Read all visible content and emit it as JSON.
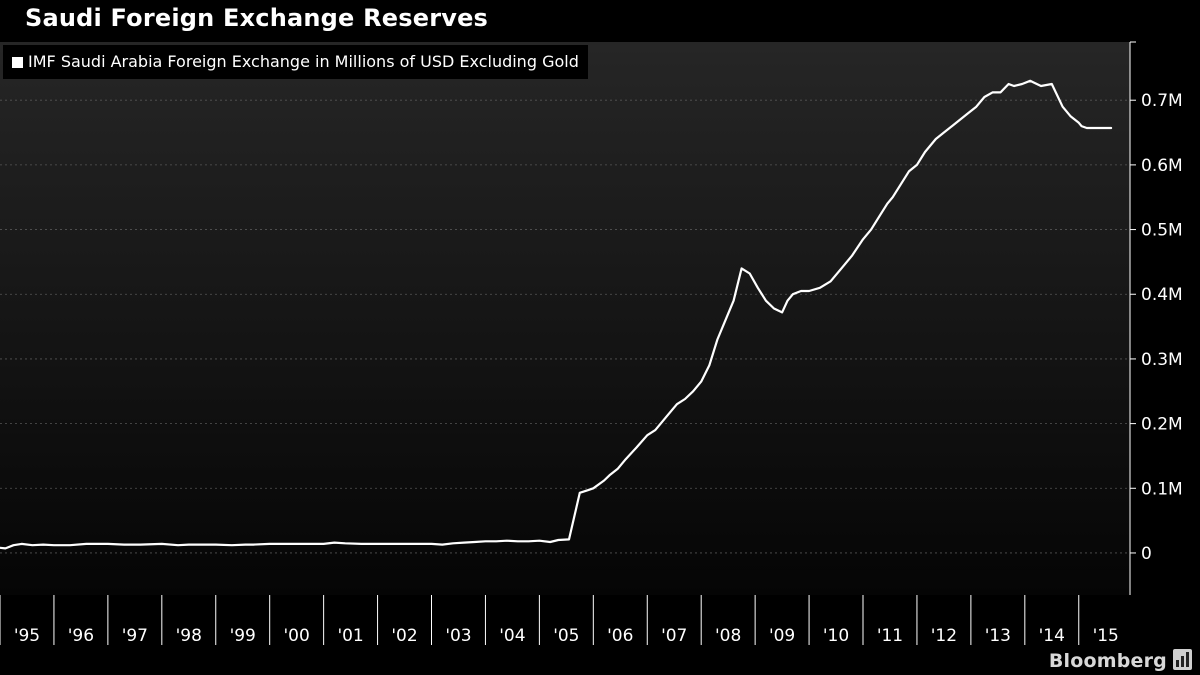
{
  "title": "Saudi Foreign Exchange Reserves",
  "brand": "Bloomberg",
  "brand_icon": "bar-chart-icon",
  "colors": {
    "background": "#000000",
    "line": "#ffffff",
    "grid": "#555555",
    "text": "#ffffff"
  },
  "chart_data": {
    "type": "line",
    "title": "Saudi Foreign Exchange Reserves",
    "xlabel": "",
    "ylabel": "",
    "legend": {
      "position": "top-left",
      "entries": [
        "IMF Saudi Arabia Foreign Exchange in Millions of USD Excluding Gold"
      ]
    },
    "grid": true,
    "y_axis_side": "right",
    "ylim": [
      -0.065,
      0.79
    ],
    "xlim": [
      1995.0,
      2015.95
    ],
    "y_ticks": [
      0,
      0.1,
      0.2,
      0.3,
      0.4,
      0.5,
      0.6,
      0.7
    ],
    "y_tick_labels": [
      "0",
      "0.1M",
      "0.2M",
      "0.3M",
      "0.4M",
      "0.5M",
      "0.6M",
      "0.7M"
    ],
    "x_ticks": [
      1995.5,
      1996.5,
      1997.5,
      1998.5,
      1999.5,
      2000.5,
      2001.5,
      2002.5,
      2003.5,
      2004.5,
      2005.5,
      2006.5,
      2007.5,
      2008.5,
      2009.5,
      2010.5,
      2011.5,
      2012.5,
      2013.5,
      2014.5,
      2015.5
    ],
    "x_tick_labels": [
      "'95",
      "'96",
      "'97",
      "'98",
      "'99",
      "'00",
      "'01",
      "'02",
      "'03",
      "'04",
      "'05",
      "'06",
      "'07",
      "'08",
      "'09",
      "'10",
      "'11",
      "'12",
      "'13",
      "'14",
      "'15"
    ],
    "series": [
      {
        "name": "IMF Saudi Arabia Foreign Exchange in Millions of USD Excluding Gold",
        "x": [
          1995.0,
          1995.1,
          1995.25,
          1995.4,
          1995.6,
          1995.8,
          1996.0,
          1996.3,
          1996.6,
          1997.0,
          1997.3,
          1997.6,
          1998.0,
          1998.3,
          1998.5,
          1998.7,
          1999.0,
          1999.3,
          1999.55,
          1999.7,
          2000.0,
          2000.5,
          2001.0,
          2001.2,
          2001.4,
          2001.7,
          2002.0,
          2002.5,
          2003.0,
          2003.2,
          2003.4,
          2003.6,
          2003.8,
          2004.0,
          2004.2,
          2004.4,
          2004.6,
          2004.8,
          2005.0,
          2005.2,
          2005.35,
          2005.55,
          2005.75,
          2005.9,
          2006.0,
          2006.2,
          2006.3,
          2006.45,
          2006.6,
          2006.8,
          2007.0,
          2007.15,
          2007.35,
          2007.55,
          2007.7,
          2007.85,
          2008.0,
          2008.15,
          2008.3,
          2008.45,
          2008.6,
          2008.75,
          2008.9,
          2009.05,
          2009.2,
          2009.35,
          2009.5,
          2009.6,
          2009.7,
          2009.85,
          2010.0,
          2010.2,
          2010.4,
          2010.6,
          2010.8,
          2011.0,
          2011.15,
          2011.3,
          2011.45,
          2011.55,
          2011.7,
          2011.85,
          2012.0,
          2012.15,
          2012.35,
          2012.5,
          2012.65,
          2012.8,
          2012.95,
          2013.1,
          2013.25,
          2013.4,
          2013.55,
          2013.7,
          2013.8,
          2013.95,
          2014.1,
          2014.15,
          2014.3,
          2014.5,
          2014.7,
          2014.85,
          2015.0,
          2015.05,
          2015.15,
          2015.3,
          2015.5,
          2015.6
        ],
        "values": [
          0.008,
          0.007,
          0.012,
          0.014,
          0.012,
          0.013,
          0.012,
          0.012,
          0.014,
          0.014,
          0.013,
          0.013,
          0.014,
          0.012,
          0.013,
          0.013,
          0.013,
          0.012,
          0.013,
          0.013,
          0.014,
          0.014,
          0.014,
          0.016,
          0.015,
          0.014,
          0.014,
          0.014,
          0.014,
          0.013,
          0.015,
          0.016,
          0.017,
          0.018,
          0.018,
          0.019,
          0.018,
          0.018,
          0.019,
          0.017,
          0.02,
          0.021,
          0.093,
          0.097,
          0.1,
          0.112,
          0.12,
          0.13,
          0.145,
          0.163,
          0.182,
          0.19,
          0.21,
          0.23,
          0.238,
          0.25,
          0.265,
          0.29,
          0.33,
          0.36,
          0.39,
          0.44,
          0.432,
          0.41,
          0.39,
          0.378,
          0.372,
          0.39,
          0.4,
          0.405,
          0.405,
          0.41,
          0.42,
          0.44,
          0.46,
          0.485,
          0.5,
          0.52,
          0.54,
          0.55,
          0.57,
          0.59,
          0.6,
          0.62,
          0.64,
          0.65,
          0.66,
          0.67,
          0.68,
          0.69,
          0.705,
          0.712,
          0.712,
          0.725,
          0.722,
          0.725,
          0.73,
          0.728,
          0.722,
          0.725,
          0.69,
          0.675,
          0.665,
          0.66,
          0.657,
          0.657,
          0.657,
          0.657
        ]
      }
    ]
  }
}
